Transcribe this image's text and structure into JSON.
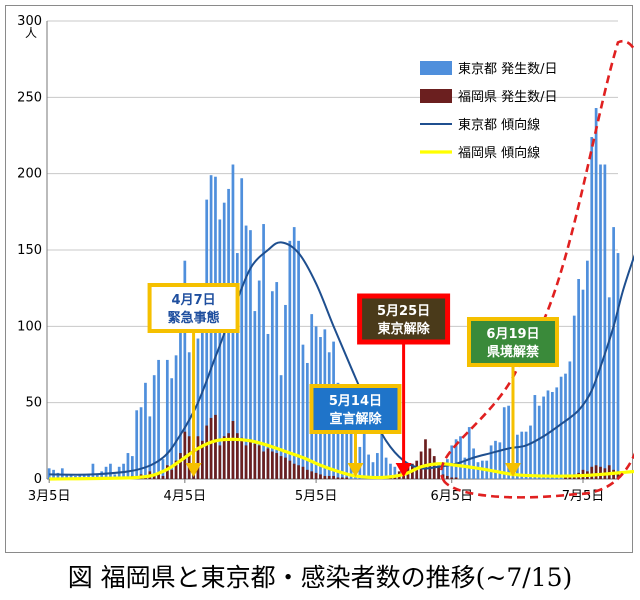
{
  "caption": "図 福岡県と東京都・感染者数の推移(~7/15)",
  "colors": {
    "tokyo_bar": "#4f8fdc",
    "fukuoka_bar": "#6b1f1f",
    "tokyo_line": "#1f4f8f",
    "fukuoka_line": "#ffff00",
    "arrow": "#f5c000",
    "arrow_red": "#ff0000",
    "ellipse": "#e02020"
  },
  "chart_data": {
    "type": "bar",
    "yunit": "人",
    "ylim": [
      0,
      300
    ],
    "yticks": [
      0,
      50,
      100,
      150,
      200,
      250,
      300
    ],
    "x_start_date": "3/5",
    "x_end_date": "7/15",
    "xticks": [
      {
        "day": 0,
        "label": "3月5日"
      },
      {
        "day": 31,
        "label": "4月5日"
      },
      {
        "day": 61,
        "label": "5月5日"
      },
      {
        "day": 92,
        "label": "6月5日"
      },
      {
        "day": 122,
        "label": "7月5日"
      }
    ],
    "grid": true,
    "legend_position": "top-right",
    "series": [
      {
        "name": "東京都 発生数/日",
        "type": "bar",
        "values": [
          7,
          6,
          4,
          7,
          3,
          3,
          2,
          3,
          3,
          3,
          10,
          3,
          5,
          8,
          10,
          3,
          8,
          10,
          17,
          15,
          45,
          47,
          63,
          41,
          68,
          78,
          13,
          78,
          66,
          81,
          97,
          143,
          83,
          78,
          92,
          116,
          183,
          199,
          198,
          170,
          181,
          190,
          206,
          148,
          197,
          166,
          163,
          110,
          130,
          167,
          95,
          123,
          129,
          68,
          114,
          156,
          165,
          156,
          88,
          76,
          108,
          100,
          93,
          98,
          83,
          90,
          63,
          38,
          31,
          40,
          24,
          21,
          34,
          16,
          11,
          17,
          30,
          14,
          10,
          8,
          2,
          5,
          3,
          8,
          3,
          5,
          8,
          11,
          14,
          10,
          11,
          13,
          22,
          26,
          28,
          14,
          34,
          20,
          11,
          12,
          12,
          22,
          25,
          24,
          47,
          48,
          18,
          29,
          31,
          31,
          35,
          55,
          48,
          54,
          58,
          57,
          60,
          67,
          69,
          77,
          107,
          131,
          124,
          143,
          224,
          243,
          206,
          206,
          119,
          165,
          148
        ]
      },
      {
        "name": "福岡県 発生数/日",
        "type": "bar",
        "values": [
          0,
          0,
          0,
          0,
          0,
          0,
          0,
          0,
          0,
          0,
          0,
          1,
          0,
          0,
          0,
          0,
          0,
          1,
          0,
          2,
          1,
          3,
          2,
          5,
          3,
          4,
          2,
          9,
          6,
          12,
          17,
          31,
          28,
          22,
          28,
          25,
          35,
          40,
          42,
          22,
          28,
          30,
          38,
          30,
          27,
          22,
          26,
          23,
          22,
          18,
          20,
          18,
          17,
          15,
          14,
          12,
          10,
          9,
          8,
          6,
          5,
          4,
          3,
          2,
          2,
          2,
          1,
          1,
          1,
          0,
          0,
          0,
          0,
          0,
          0,
          0,
          0,
          0,
          1,
          2,
          5,
          3,
          8,
          10,
          12,
          18,
          26,
          20,
          15,
          8,
          3,
          2,
          1,
          1,
          0,
          0,
          0,
          0,
          0,
          0,
          0,
          0,
          0,
          0,
          0,
          0,
          0,
          0,
          0,
          0,
          0,
          0,
          0,
          0,
          0,
          0,
          0,
          0,
          1,
          2,
          3,
          4,
          6,
          5,
          8,
          9,
          8,
          7,
          9,
          6,
          5
        ]
      },
      {
        "name": "東京都 傾向線",
        "type": "line",
        "values": [
          [
            0,
            3
          ],
          [
            10,
            3
          ],
          [
            20,
            6
          ],
          [
            26,
            14
          ],
          [
            30,
            29
          ],
          [
            34,
            50
          ],
          [
            38,
            80
          ],
          [
            42,
            110
          ],
          [
            46,
            138
          ],
          [
            50,
            150
          ],
          [
            53,
            155
          ],
          [
            57,
            148
          ],
          [
            61,
            128
          ],
          [
            65,
            100
          ],
          [
            69,
            73
          ],
          [
            73,
            47
          ],
          [
            77,
            25
          ],
          [
            81,
            12
          ],
          [
            85,
            7
          ],
          [
            89,
            8
          ],
          [
            93,
            10
          ],
          [
            97,
            14
          ],
          [
            101,
            17
          ],
          [
            105,
            20
          ],
          [
            109,
            22
          ],
          [
            113,
            28
          ],
          [
            117,
            36
          ],
          [
            121,
            45
          ],
          [
            124,
            58
          ],
          [
            127,
            82
          ],
          [
            129,
            100
          ],
          [
            131,
            122
          ],
          [
            133,
            140
          ],
          [
            134,
            148
          ]
        ]
      },
      {
        "name": "福岡県 傾向線",
        "type": "line",
        "values": [
          [
            0,
            0
          ],
          [
            20,
            1
          ],
          [
            26,
            5
          ],
          [
            30,
            12
          ],
          [
            34,
            20
          ],
          [
            38,
            25
          ],
          [
            42,
            26
          ],
          [
            46,
            25
          ],
          [
            50,
            22
          ],
          [
            54,
            18
          ],
          [
            58,
            14
          ],
          [
            62,
            9
          ],
          [
            66,
            5
          ],
          [
            70,
            2
          ],
          [
            76,
            1
          ],
          [
            81,
            3
          ],
          [
            85,
            8
          ],
          [
            89,
            10
          ],
          [
            93,
            9
          ],
          [
            98,
            7
          ],
          [
            102,
            5
          ],
          [
            106,
            3
          ],
          [
            112,
            2
          ],
          [
            120,
            2
          ],
          [
            126,
            3
          ],
          [
            130,
            4
          ],
          [
            134,
            5
          ]
        ]
      }
    ],
    "annotations": [
      {
        "label": "4月7日\n緊急事態",
        "day": 33,
        "color": "#f5c000"
      },
      {
        "label": "5月14日\n宣言解除",
        "day": 70,
        "color": "#f5c000"
      },
      {
        "label": "5月25日\n東京解除",
        "day": 81,
        "color": "#ff0000"
      },
      {
        "label": "6月19日\n県境解禁",
        "day": 106,
        "color": "#f5c000"
      }
    ]
  }
}
